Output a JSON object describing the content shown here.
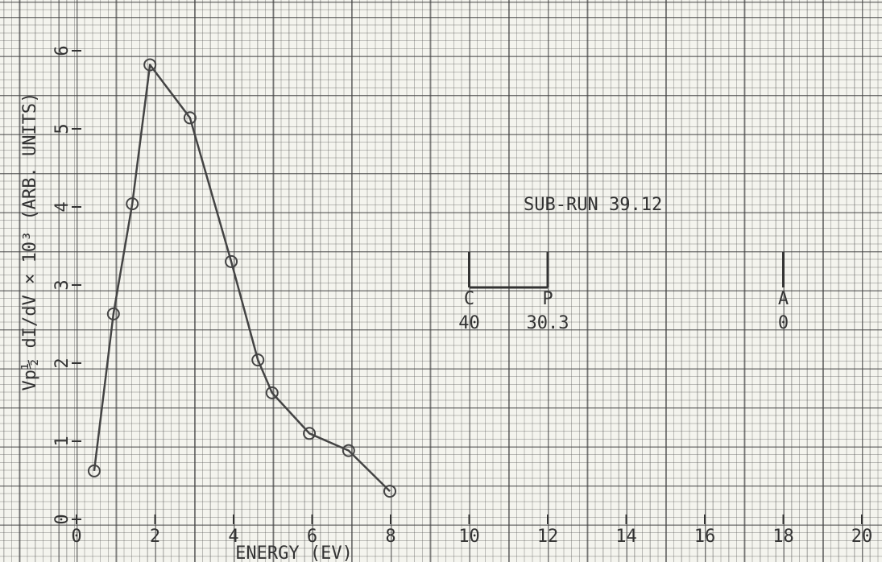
{
  "chart_data": {
    "type": "line",
    "x_label": "ENERGY (EV)",
    "y_label": "Vp½ dI/dV × 10³ (ARB. UNITS)",
    "annotation": "SUB-RUN 39.12",
    "x": [
      0.45,
      0.94,
      1.42,
      1.87,
      2.89,
      3.94,
      4.62,
      4.98,
      5.93,
      6.93,
      7.98
    ],
    "series": [
      {
        "color": "#444444",
        "values": [
          0.62,
          2.63,
          4.04,
          5.82,
          5.14,
          3.3,
          2.04,
          1.62,
          1.1,
          0.88,
          0.36
        ]
      }
    ],
    "markers": [
      {
        "name": "C",
        "x": 10,
        "label": "40"
      },
      {
        "name": "P",
        "x": 12,
        "label": "30.3"
      },
      {
        "name": "A",
        "x": 18,
        "label": "0"
      }
    ],
    "xlim": [
      0,
      20
    ],
    "xticks": [
      0,
      2,
      4,
      6,
      8,
      10,
      12,
      14,
      16,
      18,
      20
    ],
    "ylim": [
      0,
      6
    ],
    "yticks": [
      0,
      1,
      2,
      3,
      4,
      5,
      6
    ]
  }
}
